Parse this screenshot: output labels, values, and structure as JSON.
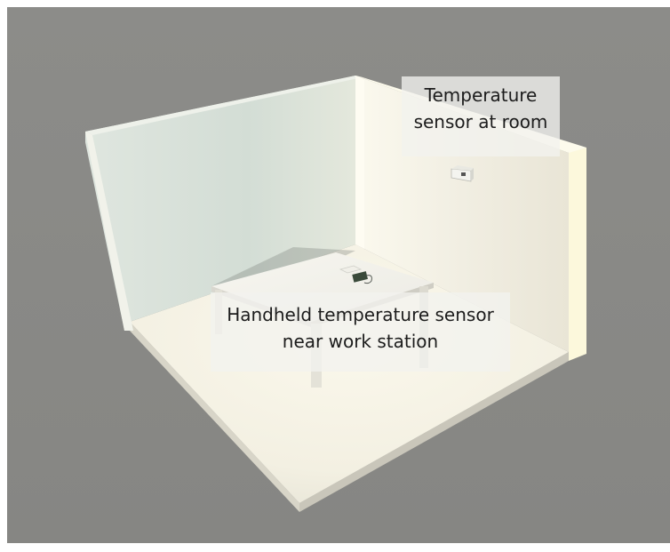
{
  "labels": {
    "room_sensor": {
      "line1": "Temperature",
      "line2": "sensor at room"
    },
    "handheld_sensor": {
      "line1": "Handheld temperature sensor",
      "line2": "near work station"
    }
  },
  "colors": {
    "background": "#8a8a87",
    "left_wall": "#d9e3dc",
    "back_wall": "#f3f1e6",
    "floor": "#f6f3e6",
    "wall_edge_light": "#fdfbea",
    "label_box": "#f2f2ee"
  }
}
